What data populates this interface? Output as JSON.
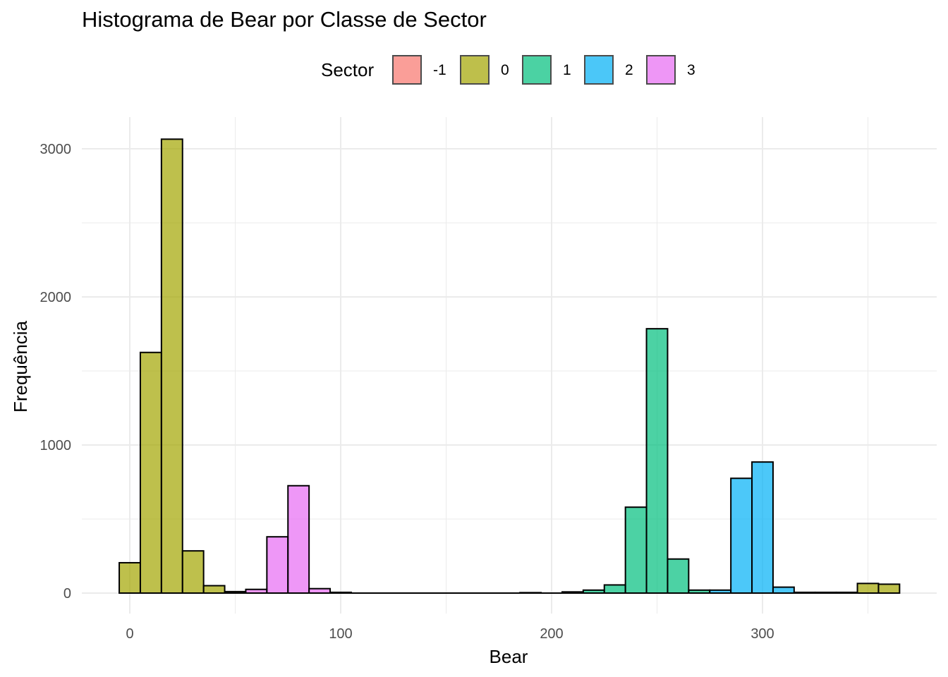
{
  "chart_data": {
    "type": "bar",
    "title": "Histograma de Bear por Classe de Sector",
    "xlabel": "Bear",
    "ylabel": "Frequência",
    "xlim": [
      -5,
      365
    ],
    "ylim": [
      0,
      3000
    ],
    "x_ticks": [
      0,
      100,
      200,
      300
    ],
    "x_tick_labels": [
      "0",
      "100",
      "200",
      "300"
    ],
    "y_ticks": [
      0,
      1000,
      2000,
      3000
    ],
    "y_tick_labels": [
      "0",
      "1000",
      "2000",
      "3000"
    ],
    "grid": true,
    "legend": {
      "title": "Sector",
      "position": "top"
    },
    "bin_width": 10,
    "series": [
      {
        "name": "-1",
        "color": "#F8766D",
        "bins": []
      },
      {
        "name": "0",
        "color": "#A3A500",
        "bins": [
          {
            "x0": -5,
            "x1": 5,
            "count": 205
          },
          {
            "x0": 5,
            "x1": 15,
            "count": 1625
          },
          {
            "x0": 15,
            "x1": 25,
            "count": 3065
          },
          {
            "x0": 25,
            "x1": 35,
            "count": 285
          },
          {
            "x0": 35,
            "x1": 45,
            "count": 50
          },
          {
            "x0": 45,
            "x1": 55,
            "count": 10
          },
          {
            "x0": 345,
            "x1": 355,
            "count": 65
          },
          {
            "x0": 355,
            "x1": 365,
            "count": 60
          }
        ]
      },
      {
        "name": "1",
        "color": "#00BF7D",
        "bins": [
          {
            "x0": 205,
            "x1": 215,
            "count": 8
          },
          {
            "x0": 215,
            "x1": 225,
            "count": 20
          },
          {
            "x0": 225,
            "x1": 235,
            "count": 55
          },
          {
            "x0": 235,
            "x1": 245,
            "count": 580
          },
          {
            "x0": 245,
            "x1": 255,
            "count": 1785
          },
          {
            "x0": 255,
            "x1": 265,
            "count": 230
          },
          {
            "x0": 265,
            "x1": 275,
            "count": 20
          }
        ]
      },
      {
        "name": "2",
        "color": "#00B0F6",
        "bins": [
          {
            "x0": 275,
            "x1": 285,
            "count": 20
          },
          {
            "x0": 285,
            "x1": 295,
            "count": 775
          },
          {
            "x0": 295,
            "x1": 305,
            "count": 885
          },
          {
            "x0": 305,
            "x1": 315,
            "count": 40
          },
          {
            "x0": 315,
            "x1": 325,
            "count": 5
          },
          {
            "x0": 325,
            "x1": 335,
            "count": 5
          },
          {
            "x0": 335,
            "x1": 345,
            "count": 5
          }
        ]
      },
      {
        "name": "3",
        "color": "#E76BF3",
        "bins": [
          {
            "x0": 55,
            "x1": 65,
            "count": 25
          },
          {
            "x0": 65,
            "x1": 75,
            "count": 380
          },
          {
            "x0": 75,
            "x1": 85,
            "count": 725
          },
          {
            "x0": 85,
            "x1": 95,
            "count": 30
          },
          {
            "x0": 95,
            "x1": 105,
            "count": 5
          },
          {
            "x0": 185,
            "x1": 195,
            "count": 3
          }
        ]
      }
    ]
  }
}
